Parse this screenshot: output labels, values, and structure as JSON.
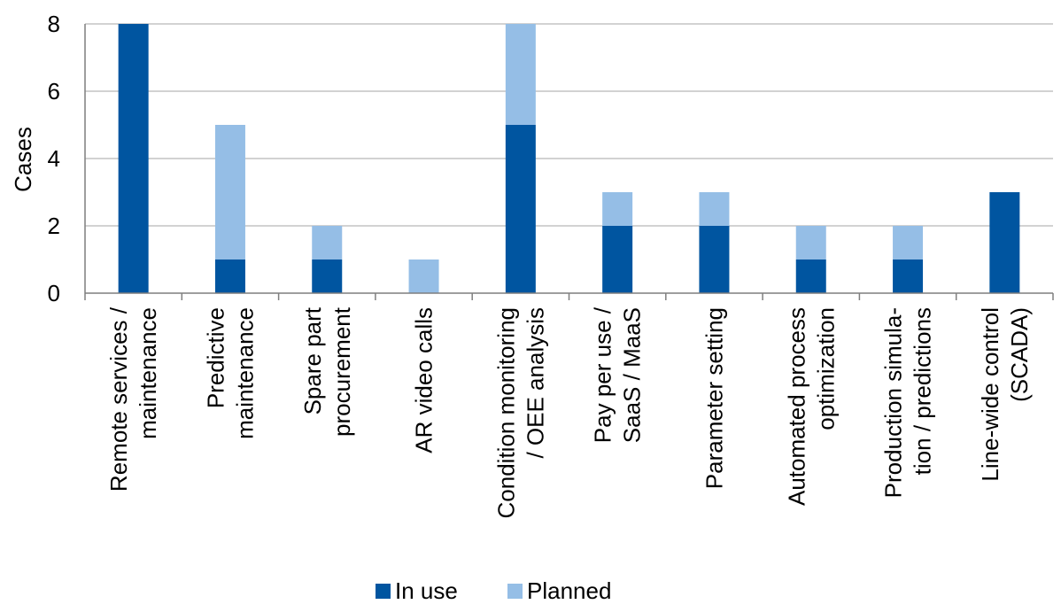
{
  "chart_data": {
    "type": "bar",
    "stacked": true,
    "categories": [
      [
        "Remote services /",
        "maintenance"
      ],
      [
        "Predictive",
        "maintenance"
      ],
      [
        "Spare part",
        "procurement"
      ],
      [
        "AR video calls"
      ],
      [
        "Condition monitoring",
        "/ OEE analysis"
      ],
      [
        "Pay per use /",
        "SaaS / MaaS"
      ],
      [
        "Parameter setting"
      ],
      [
        "Automated process",
        "optimization"
      ],
      [
        "Production simula-",
        "tion / predictions"
      ],
      [
        "Line-wide control",
        "(SCADA)"
      ]
    ],
    "series": [
      {
        "name": "In use",
        "color": "#0055a0",
        "values": [
          8,
          1,
          1,
          0,
          5,
          2,
          2,
          1,
          1,
          3
        ]
      },
      {
        "name": "Planned",
        "color": "#95bee6",
        "values": [
          0,
          4,
          1,
          1,
          3,
          1,
          1,
          1,
          1,
          0
        ]
      }
    ],
    "ylabel": "Cases",
    "xlabel": "",
    "ylim": [
      0,
      8
    ],
    "yticks": [
      0,
      2,
      4,
      6,
      8
    ],
    "grid": true,
    "legend": "bottom"
  }
}
